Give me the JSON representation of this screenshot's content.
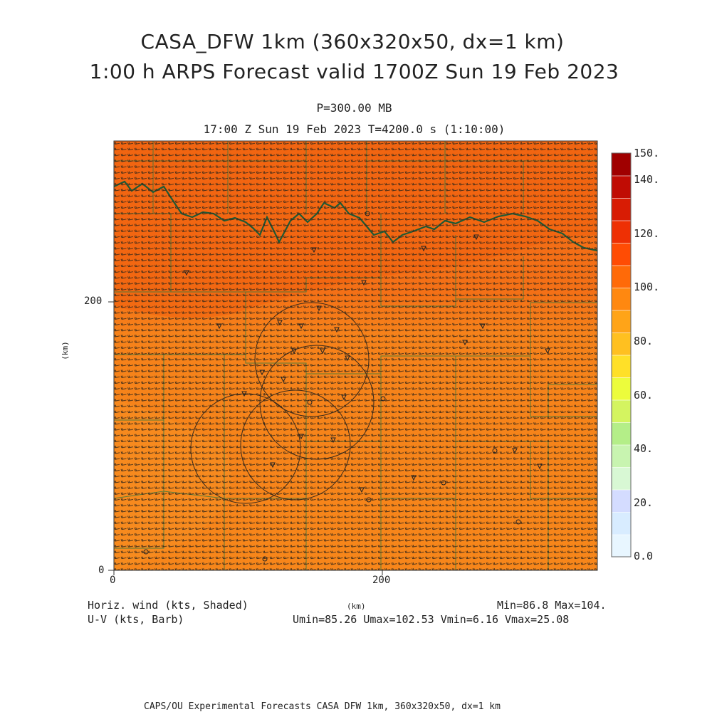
{
  "header": {
    "title_line1": "CASA_DFW 1km (360x320x50, dx=1 km)",
    "title_line2": "1:00 h ARPS Forecast valid 1700Z Sun 19 Feb 2023",
    "level": "P=300.00 MB",
    "time": "17:00 Z Sun 19 Feb 2023    T=4200.0 s (1:10:00)"
  },
  "axes": {
    "x_ticks": [
      "0",
      "200"
    ],
    "y_ticks": [
      "0",
      "200"
    ],
    "xlabel": "(km)",
    "ylabel": "(km)"
  },
  "colorbar": {
    "labels": [
      "0.0",
      "20.",
      "40.",
      "60.",
      "80.",
      "100.",
      "120.",
      "140.",
      "150."
    ],
    "colors": [
      "#e8f6ff",
      "#d8ecff",
      "#d4dcff",
      "#d8f8d4",
      "#c8f4b0",
      "#b4ee88",
      "#d4f460",
      "#ecfc3c",
      "#ffe028",
      "#ffc020",
      "#ffa418",
      "#ff8810",
      "#ff6a08",
      "#ff4c04",
      "#ee3004",
      "#d81c04",
      "#c00c04",
      "#a00000"
    ]
  },
  "footer": {
    "left_line1": "Horiz. wind (kts, Shaded)",
    "left_line2": "U-V (kts, Barb)",
    "right_line1": "Min=86.8 Max=104.",
    "right_line2": "Umin=85.26 Umax=102.53 Vmin=6.16 Vmax=25.08",
    "credit": "CAPS/OU Experimental Forecasts  CASA DFW 1km, 360x320x50, dx=1 km"
  },
  "map": {
    "field_min": 86.8,
    "field_max": 104.0,
    "base_color": "#f68418",
    "high_color": "#f26212",
    "low_color": "#f7901c",
    "boundary_color": "#2d6a2d",
    "river_color": "#1a5a3a"
  }
}
